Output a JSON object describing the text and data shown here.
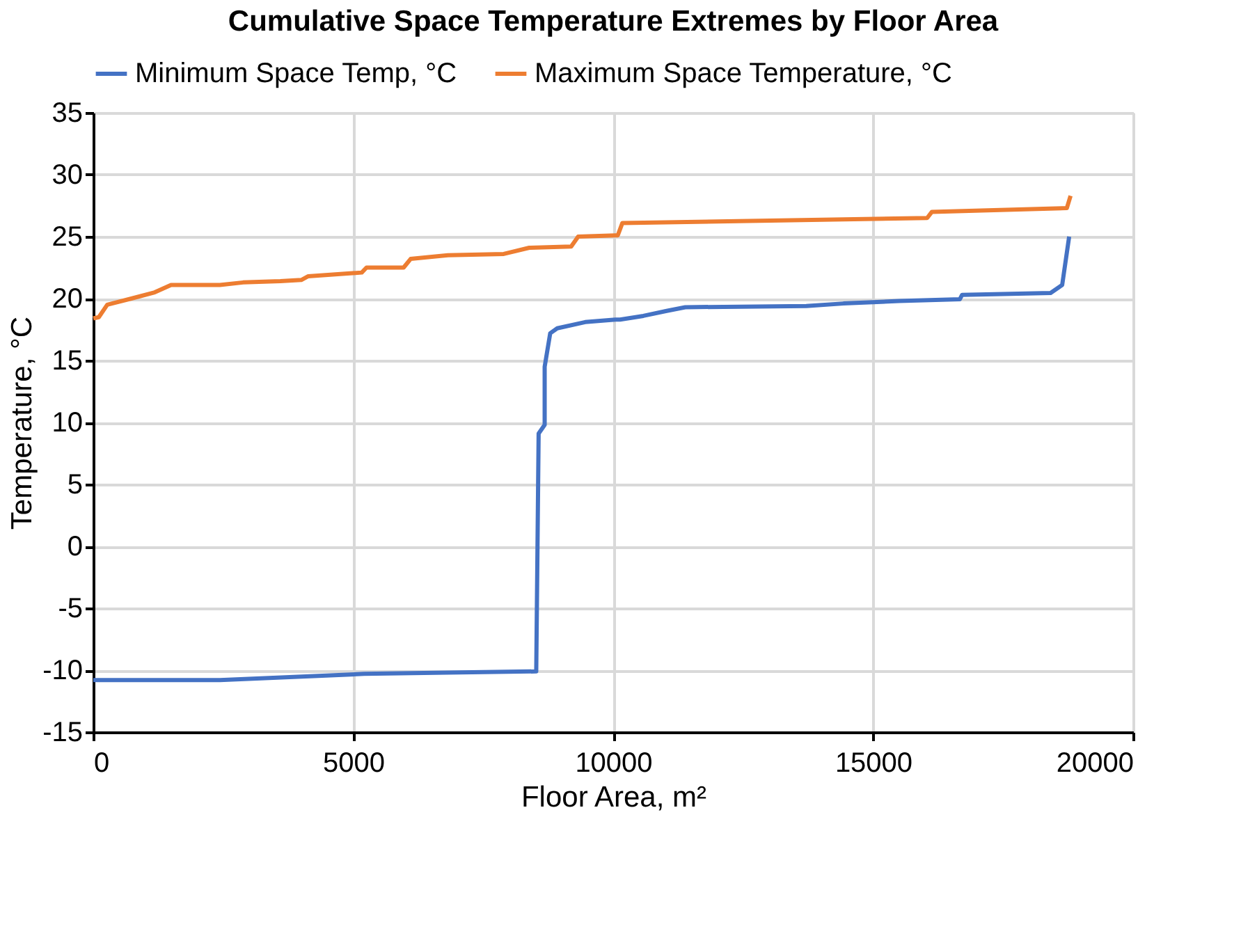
{
  "chart_data": {
    "type": "line",
    "title": "Cumulative Space Temperature Extremes by Floor Area",
    "xlabel": "Floor Area, m²",
    "ylabel": "Temperature, °C",
    "xlim": [
      0,
      20000
    ],
    "xticks": [
      0,
      5000,
      10000,
      15000,
      20000
    ],
    "ylim": [
      -15,
      35
    ],
    "yticks": [
      -15,
      -10,
      -5,
      0,
      5,
      10,
      15,
      20,
      25,
      30,
      35
    ],
    "grid": true,
    "legend": "top",
    "marker": "none",
    "line_style": "solid",
    "series": [
      {
        "name": "Minimum Space Temp, °C",
        "color": "#4472c4",
        "x": [
          0,
          2436,
          5210,
          8520,
          8566,
          8682,
          8682,
          8789,
          8924,
          9461,
          10043,
          10132,
          10580,
          11029,
          11386,
          13714,
          14428,
          15502,
          16668,
          16711,
          18413,
          18636,
          18770
        ],
        "values": [
          -10.8,
          -10.8,
          -10.3,
          -10.1,
          9.1,
          9.8,
          14.5,
          17.2,
          17.6,
          18.1,
          18.3,
          18.3,
          18.6,
          19.0,
          19.3,
          19.4,
          19.6,
          19.8,
          19.95,
          20.3,
          20.45,
          21.1,
          25.0
        ]
      },
      {
        "name": "Maximum Space Temperature, °C",
        "color": "#ed7d31",
        "x": [
          0,
          107,
          269,
          733,
          1182,
          1496,
          2436,
          2881,
          3598,
          4001,
          4135,
          5164,
          5255,
          5969,
          6104,
          6821,
          7895,
          8386,
          9192,
          9326,
          10043,
          10088,
          10177,
          16039,
          16130,
          18725,
          18797
        ],
        "values": [
          18.4,
          18.5,
          19.5,
          20.0,
          20.5,
          21.1,
          21.1,
          21.3,
          21.4,
          21.5,
          21.8,
          22.1,
          22.5,
          22.5,
          23.2,
          23.5,
          23.6,
          24.1,
          24.2,
          25.0,
          25.1,
          25.1,
          26.1,
          26.5,
          27.0,
          27.3,
          28.3
        ]
      }
    ]
  }
}
